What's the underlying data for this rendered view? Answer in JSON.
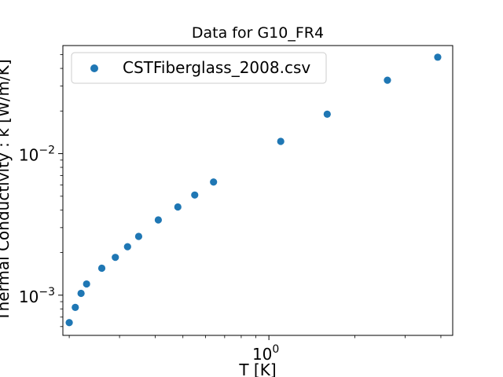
{
  "chart_data": {
    "type": "scatter",
    "title": "Data for G10_FR4",
    "xlabel": "T [K]",
    "ylabel": "Thermal Conductivity : k [W/m/K]",
    "xscale": "log",
    "yscale": "log",
    "xlim": [
      0.19,
      4.4
    ],
    "ylim": [
      0.00052,
      0.058
    ],
    "x_ticks": [
      {
        "value": 1,
        "label": "10^0"
      }
    ],
    "y_ticks": [
      {
        "value": 0.001,
        "label": "10^-3"
      },
      {
        "value": 0.01,
        "label": "10^-2"
      }
    ],
    "grid": false,
    "legend_position": "top-left",
    "series": [
      {
        "name": "CSTFiberglass_2008.csv",
        "color": "#1f77b4",
        "marker": "circle",
        "x": [
          0.2,
          0.21,
          0.22,
          0.23,
          0.26,
          0.29,
          0.32,
          0.35,
          0.41,
          0.48,
          0.55,
          0.64,
          1.1,
          1.6,
          2.6,
          3.9
        ],
        "y": [
          0.00064,
          0.00082,
          0.00103,
          0.0012,
          0.00155,
          0.00185,
          0.0022,
          0.0026,
          0.0034,
          0.0042,
          0.0051,
          0.0063,
          0.0122,
          0.019,
          0.033,
          0.048
        ]
      }
    ]
  }
}
